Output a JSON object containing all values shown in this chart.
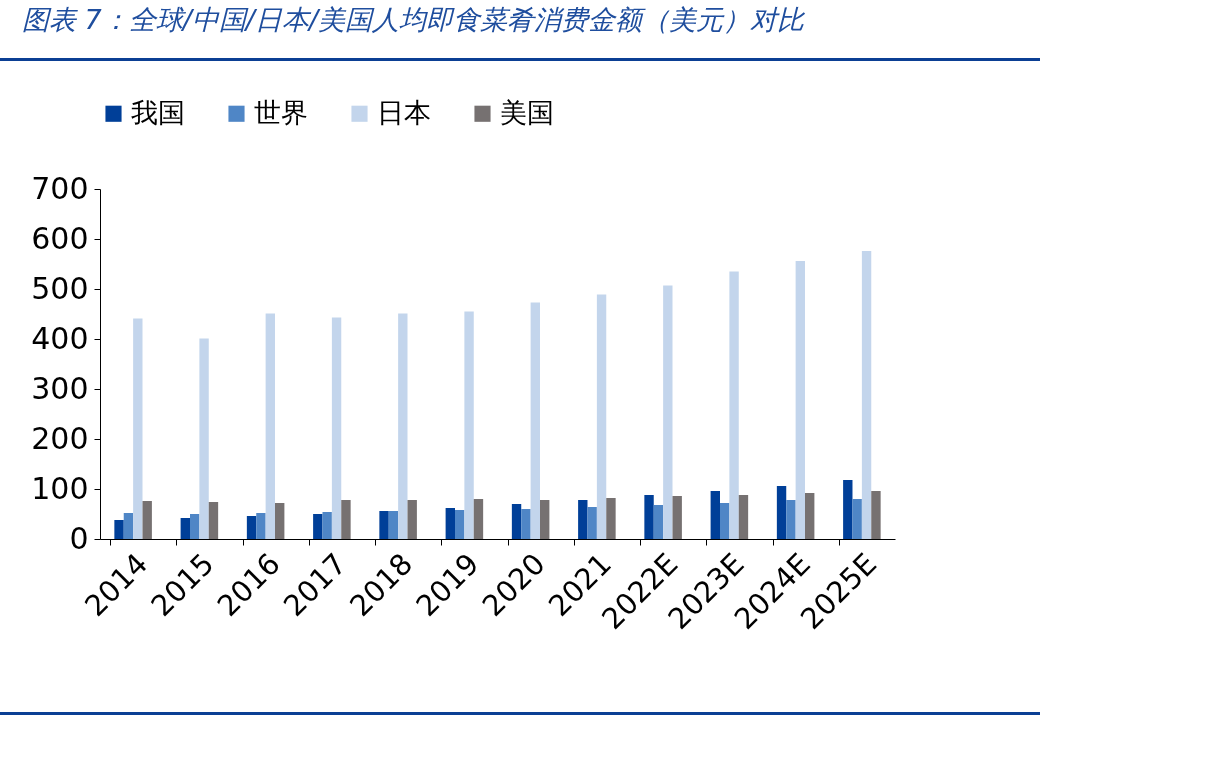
{
  "chart_data": {
    "type": "bar",
    "title": "图表 7：全球/中国/日本/美国人均即食菜肴消费金额（美元）对比",
    "categories": [
      "2014",
      "2015",
      "2016",
      "2017",
      "2018",
      "2019",
      "2020",
      "2021",
      "2022E",
      "2023E",
      "2024E",
      "2025E"
    ],
    "series": [
      {
        "name": "我国",
        "color": "#003f98",
        "values": [
          38,
          42,
          46,
          50,
          56,
          62,
          70,
          78,
          88,
          96,
          106,
          118
        ]
      },
      {
        "name": "世界",
        "color": "#4f86c6",
        "values": [
          52,
          50,
          52,
          54,
          56,
          58,
          60,
          64,
          68,
          72,
          78,
          80
        ]
      },
      {
        "name": "日本",
        "color": "#c3d5ec",
        "values": [
          441,
          401,
          451,
          443,
          451,
          455,
          473,
          489,
          507,
          535,
          556,
          576
        ]
      },
      {
        "name": "美国",
        "color": "#767171",
        "values": [
          76,
          74,
          72,
          78,
          78,
          80,
          78,
          82,
          86,
          88,
          92,
          96
        ]
      }
    ],
    "ylim": [
      0,
      700
    ],
    "yticks": [
      0,
      100,
      200,
      300,
      400,
      500,
      600,
      700
    ],
    "grid": false,
    "legend": "top"
  }
}
